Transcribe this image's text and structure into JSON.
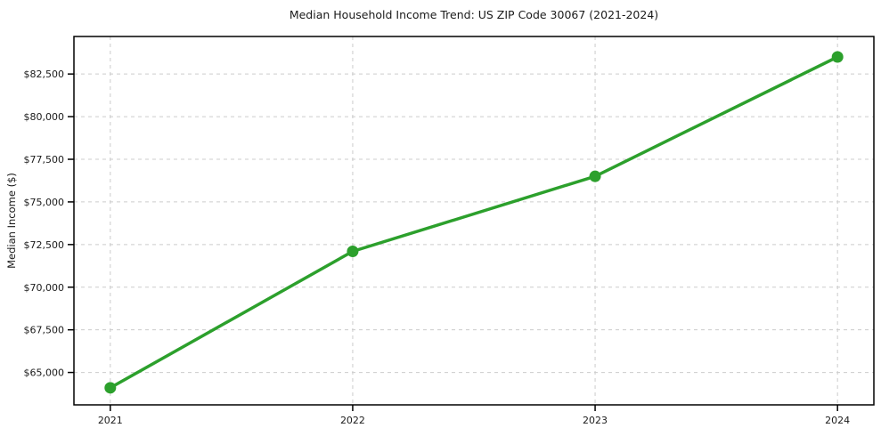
{
  "chart_data": {
    "type": "line",
    "title": "Median Household Income Trend: US ZIP Code 30067 (2021-2024)",
    "xlabel": "",
    "ylabel": "Median Income ($)",
    "categories": [
      2021,
      2022,
      2023,
      2024
    ],
    "series": [
      {
        "name": "Median Household Income",
        "values": [
          64100,
          72100,
          76500,
          83500
        ]
      }
    ],
    "xticks": [
      {
        "value": 2021,
        "label": "2021"
      },
      {
        "value": 2022,
        "label": "2022"
      },
      {
        "value": 2023,
        "label": "2023"
      },
      {
        "value": 2024,
        "label": "2024"
      }
    ],
    "yticks": [
      {
        "value": 65000,
        "label": "$65,000"
      },
      {
        "value": 67500,
        "label": "$67,500"
      },
      {
        "value": 70000,
        "label": "$70,000"
      },
      {
        "value": 72500,
        "label": "$72,500"
      },
      {
        "value": 75000,
        "label": "$75,000"
      },
      {
        "value": 77500,
        "label": "$77,500"
      },
      {
        "value": 80000,
        "label": "$80,000"
      },
      {
        "value": 82500,
        "label": "$82,500"
      }
    ],
    "xlim": [
      2020.85,
      2024.15
    ],
    "ylim": [
      63100,
      84700
    ],
    "grid": true,
    "grid_style": "dashed",
    "legend": false,
    "colors": {
      "line": "#2ca02c",
      "marker": "#2ca02c",
      "grid": "#cccccc",
      "spine": "#000000",
      "text": "#1a1a1a",
      "background": "#ffffff"
    }
  }
}
